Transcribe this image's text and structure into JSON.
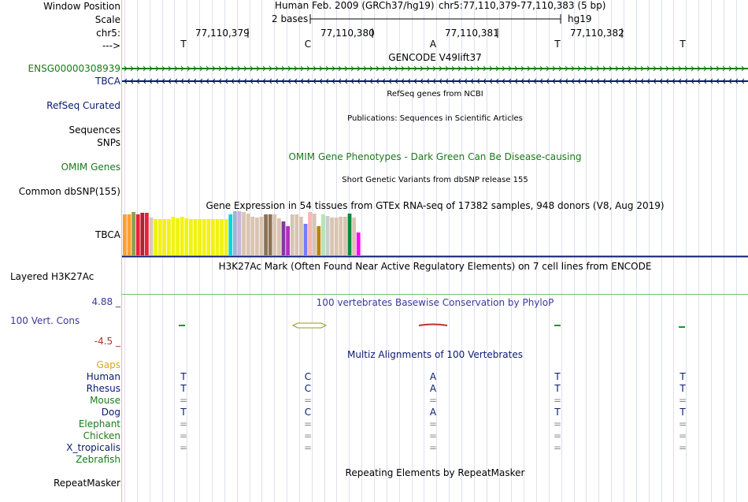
{
  "labels": {
    "window_position": "Window Position",
    "scale": "Scale",
    "chrom": "chr5:",
    "strand": "--->",
    "gencode_gene": "ENSG00000308939",
    "tbca": "TBCA",
    "refseq": "RefSeq Curated",
    "sequences": "Sequences",
    "snps": "SNPs",
    "omim": "OMIM Genes",
    "common_dbsnp": "Common dbSNP(155)",
    "gtex": "TBCA",
    "h3k27ac": "Layered H3K27Ac",
    "cons_max": "4.88 _",
    "cons": "100 Vert. Cons",
    "cons_min": "-4.5 _",
    "gaps": "Gaps"
  },
  "header": {
    "assembly": "Human Feb. 2009 (GRCh37/hg19)",
    "position": "chr5:77,110,379-77,110,383 (5 bp)",
    "scale_text": "2 bases",
    "scale_db": "hg19"
  },
  "ruler": [
    "77,110,379",
    "77,110,380",
    "77,110,381",
    "77,110,382"
  ],
  "bases": [
    "T",
    "C",
    "A",
    "T",
    "T"
  ],
  "tracks": {
    "gencode": "GENCODE V49lift37",
    "refseq": "RefSeq genes from NCBI",
    "pubs": "Publications: Sequences in Scientific Articles",
    "omim": "OMIM Gene Phenotypes - Dark Green Can Be Disease-causing",
    "dbsnp": "Short Genetic Variants from dbSNP release 155",
    "gtex": "Gene Expression in 54 tissues from GTEx RNA-seq of 17382 samples, 948 donors (V8, Aug 2019)",
    "h3k27ac": "H3K27Ac Mark (Often Found Near Active Regulatory Elements) on 7 cell lines from ENCODE",
    "phylop": "100 vertebrates Basewise Conservation by PhyloP",
    "multiz": "Multiz Alignments of 100 Vertebrates",
    "repeatmasker": "Repeating Elements by RepeatMasker"
  },
  "species": [
    {
      "name": "Human",
      "color": "#0a1a6e",
      "bases": [
        "T",
        "C",
        "A",
        "T",
        "T"
      ]
    },
    {
      "name": "Rhesus",
      "color": "#0a1a6e",
      "bases": [
        "T",
        "C",
        "A",
        "T",
        "T"
      ]
    },
    {
      "name": "Mouse",
      "color": "#1a7a1a",
      "bases": [
        "=",
        "=",
        "=",
        "=",
        "="
      ]
    },
    {
      "name": "Dog",
      "color": "#0a1a6e",
      "bases": [
        "T",
        "C",
        "A",
        "T",
        "T"
      ]
    },
    {
      "name": "Elephant",
      "color": "#1a7a1a",
      "bases": [
        "=",
        "=",
        "=",
        "=",
        "="
      ]
    },
    {
      "name": "Chicken",
      "color": "#1a7a1a",
      "bases": [
        "=",
        "=",
        "=",
        "=",
        "="
      ]
    },
    {
      "name": "X_tropicalis",
      "color": "#0a1a6e",
      "bases": [
        "=",
        "=",
        "=",
        "=",
        "="
      ]
    },
    {
      "name": "Zebrafish",
      "color": "#1a7a1a",
      "bases": []
    }
  ],
  "repeatmasker_label": "RepeatMasker",
  "gtex_bars": [
    {
      "c": "#ff9f2e",
      "v": 0.92
    },
    {
      "c": "#ff9f2e",
      "v": 0.92
    },
    {
      "c": "#8f9f52",
      "v": 0.98
    },
    {
      "c": "#e8223a",
      "v": 0.92
    },
    {
      "c": "#b31f33",
      "v": 0.96
    },
    {
      "c": "#e8223a",
      "v": 0.96
    },
    {
      "c": "#d8c9b8",
      "v": 0.86
    },
    {
      "c": "#f2f212",
      "v": 0.82
    },
    {
      "c": "#f2f212",
      "v": 0.82
    },
    {
      "c": "#f2f212",
      "v": 0.82
    },
    {
      "c": "#f2f212",
      "v": 0.82
    },
    {
      "c": "#f2f212",
      "v": 0.88
    },
    {
      "c": "#f2f212",
      "v": 0.84
    },
    {
      "c": "#f2f212",
      "v": 0.88
    },
    {
      "c": "#f2f212",
      "v": 0.84
    },
    {
      "c": "#f2f212",
      "v": 0.82
    },
    {
      "c": "#f2f212",
      "v": 0.82
    },
    {
      "c": "#f2f212",
      "v": 0.82
    },
    {
      "c": "#f2f212",
      "v": 0.82
    },
    {
      "c": "#f2f212",
      "v": 0.82
    },
    {
      "c": "#f2f212",
      "v": 0.82
    },
    {
      "c": "#f2f212",
      "v": 0.82
    },
    {
      "c": "#f2f212",
      "v": 0.82
    },
    {
      "c": "#f2f212",
      "v": 0.82
    },
    {
      "c": "#00d5dd",
      "v": 0.92
    },
    {
      "c": "#a1b3d6",
      "v": 1.0
    },
    {
      "c": "#c9b3d9",
      "v": 1.0
    },
    {
      "c": "#d9c4b2",
      "v": 0.98
    },
    {
      "c": "#d9c4b2",
      "v": 0.94
    },
    {
      "c": "#d9c4b2",
      "v": 0.88
    },
    {
      "c": "#d9c4b2",
      "v": 0.86
    },
    {
      "c": "#d9c4b2",
      "v": 0.88
    },
    {
      "c": "#8b7355",
      "v": 0.92
    },
    {
      "c": "#8b7355",
      "v": 0.92
    },
    {
      "c": "#d9c4b2",
      "v": 0.92
    },
    {
      "c": "#d9c4b2",
      "v": 0.84
    },
    {
      "c": "#7f3aa0",
      "v": 0.76
    },
    {
      "c": "#b52ebf",
      "v": 0.66
    },
    {
      "c": "#d9c4b2",
      "v": 0.92
    },
    {
      "c": "#d9c4b2",
      "v": 0.92
    },
    {
      "c": "#d9c4b2",
      "v": 0.88
    },
    {
      "c": "#7a7aff",
      "v": 0.72
    },
    {
      "c": "#ffb3b3",
      "v": 0.98
    },
    {
      "c": "#d9c4b2",
      "v": 0.94
    },
    {
      "c": "#b8860b",
      "v": 0.66
    },
    {
      "c": "#b3e6b3",
      "v": 0.92
    },
    {
      "c": "#cccccc",
      "v": 0.9
    },
    {
      "c": "#d9c4b2",
      "v": 0.86
    },
    {
      "c": "#d9c4b2",
      "v": 0.86
    },
    {
      "c": "#d9c4b2",
      "v": 0.88
    },
    {
      "c": "#d9c4b2",
      "v": 0.88
    },
    {
      "c": "#0a8a3a",
      "v": 0.95
    },
    {
      "c": "#d9c4b2",
      "v": 0.86
    },
    {
      "c": "#ff00ff",
      "v": 0.52
    }
  ]
}
